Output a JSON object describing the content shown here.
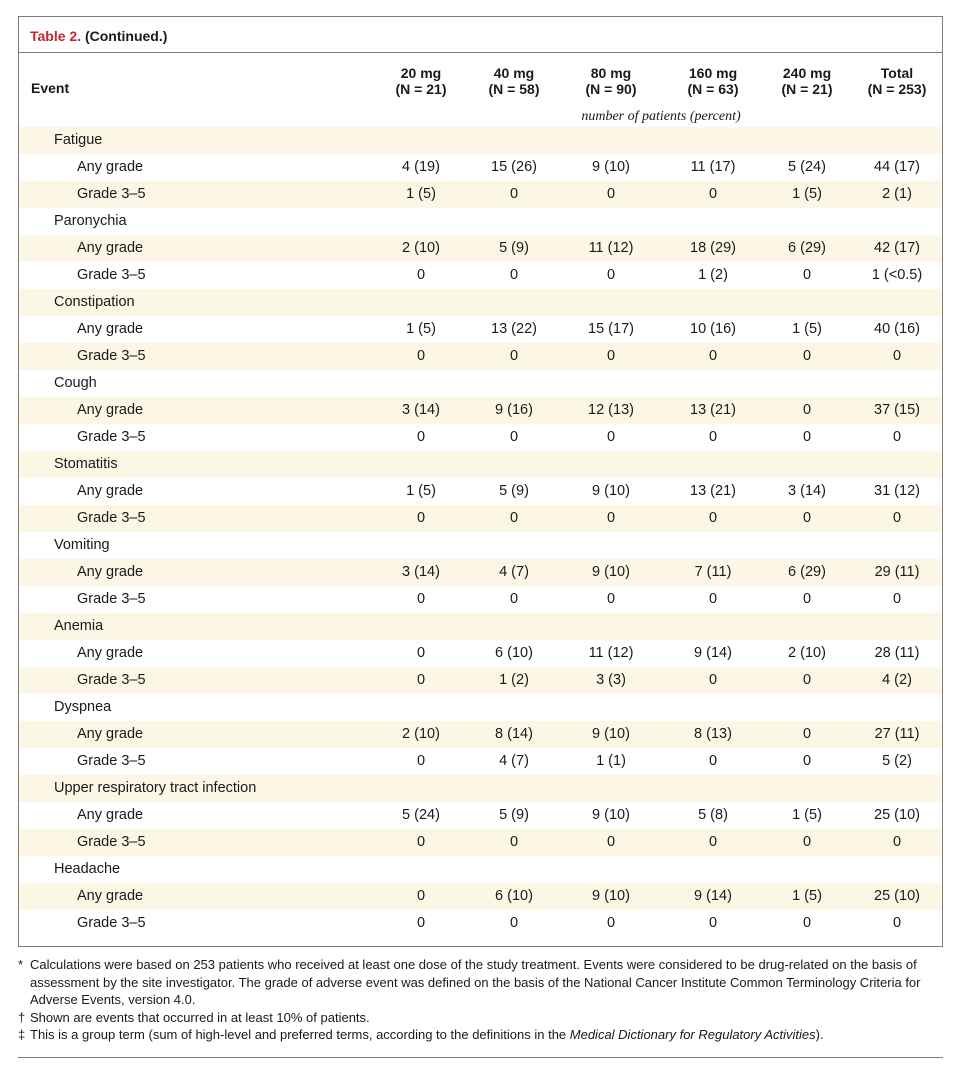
{
  "caption": {
    "label": "Table 2.",
    "continued": "(Continued.)"
  },
  "header": {
    "event": "Event",
    "columns": [
      {
        "dose": "20 mg",
        "n": "(N = 21)"
      },
      {
        "dose": "40 mg",
        "n": "(N = 58)"
      },
      {
        "dose": "80 mg",
        "n": "(N = 90)"
      },
      {
        "dose": "160 mg",
        "n": "(N = 63)"
      },
      {
        "dose": "240 mg",
        "n": "(N = 21)"
      },
      {
        "dose": "Total",
        "n": "(N = 253)"
      }
    ],
    "units": "number of patients (percent)"
  },
  "rows": [
    {
      "kind": "cat",
      "label": "Fatigue"
    },
    {
      "kind": "sub",
      "label": "Any grade",
      "values": [
        "4 (19)",
        "15 (26)",
        "9 (10)",
        "11 (17)",
        "5 (24)",
        "44 (17)"
      ]
    },
    {
      "kind": "sub",
      "label": "Grade 3–5",
      "values": [
        "1 (5)",
        "0",
        "0",
        "0",
        "1 (5)",
        "2 (1)"
      ]
    },
    {
      "kind": "cat",
      "label": "Paronychia"
    },
    {
      "kind": "sub",
      "label": "Any grade",
      "values": [
        "2 (10)",
        "5 (9)",
        "11 (12)",
        "18 (29)",
        "6 (29)",
        "42 (17)"
      ]
    },
    {
      "kind": "sub",
      "label": "Grade 3–5",
      "values": [
        "0",
        "0",
        "0",
        "1 (2)",
        "0",
        "1 (<0.5)"
      ]
    },
    {
      "kind": "cat",
      "label": "Constipation"
    },
    {
      "kind": "sub",
      "label": "Any grade",
      "values": [
        "1 (5)",
        "13 (22)",
        "15 (17)",
        "10 (16)",
        "1 (5)",
        "40 (16)"
      ]
    },
    {
      "kind": "sub",
      "label": "Grade 3–5",
      "values": [
        "0",
        "0",
        "0",
        "0",
        "0",
        "0"
      ]
    },
    {
      "kind": "cat",
      "label": "Cough"
    },
    {
      "kind": "sub",
      "label": "Any grade",
      "values": [
        "3 (14)",
        "9 (16)",
        "12 (13)",
        "13 (21)",
        "0",
        "37 (15)"
      ]
    },
    {
      "kind": "sub",
      "label": "Grade 3–5",
      "values": [
        "0",
        "0",
        "0",
        "0",
        "0",
        "0"
      ]
    },
    {
      "kind": "cat",
      "label": "Stomatitis"
    },
    {
      "kind": "sub",
      "label": "Any grade",
      "values": [
        "1 (5)",
        "5 (9)",
        "9 (10)",
        "13 (21)",
        "3 (14)",
        "31 (12)"
      ]
    },
    {
      "kind": "sub",
      "label": "Grade 3–5",
      "values": [
        "0",
        "0",
        "0",
        "0",
        "0",
        "0"
      ]
    },
    {
      "kind": "cat",
      "label": "Vomiting"
    },
    {
      "kind": "sub",
      "label": "Any grade",
      "values": [
        "3 (14)",
        "4 (7)",
        "9 (10)",
        "7 (11)",
        "6 (29)",
        "29 (11)"
      ]
    },
    {
      "kind": "sub",
      "label": "Grade 3–5",
      "values": [
        "0",
        "0",
        "0",
        "0",
        "0",
        "0"
      ]
    },
    {
      "kind": "cat",
      "label": "Anemia"
    },
    {
      "kind": "sub",
      "label": "Any grade",
      "values": [
        "0",
        "6 (10)",
        "11 (12)",
        "9 (14)",
        "2 (10)",
        "28 (11)"
      ]
    },
    {
      "kind": "sub",
      "label": "Grade 3–5",
      "values": [
        "0",
        "1 (2)",
        "3 (3)",
        "0",
        "0",
        "4 (2)"
      ]
    },
    {
      "kind": "cat",
      "label": "Dyspnea"
    },
    {
      "kind": "sub",
      "label": "Any grade",
      "values": [
        "2 (10)",
        "8 (14)",
        "9 (10)",
        "8 (13)",
        "0",
        "27 (11)"
      ]
    },
    {
      "kind": "sub",
      "label": "Grade 3–5",
      "values": [
        "0",
        "4 (7)",
        "1 (1)",
        "0",
        "0",
        "5 (2)"
      ]
    },
    {
      "kind": "cat",
      "label": "Upper respiratory tract infection"
    },
    {
      "kind": "sub",
      "label": "Any grade",
      "values": [
        "5 (24)",
        "5 (9)",
        "9 (10)",
        "5 (8)",
        "1 (5)",
        "25 (10)"
      ]
    },
    {
      "kind": "sub",
      "label": "Grade 3–5",
      "values": [
        "0",
        "0",
        "0",
        "0",
        "0",
        "0"
      ]
    },
    {
      "kind": "cat",
      "label": "Headache"
    },
    {
      "kind": "sub",
      "label": "Any grade",
      "values": [
        "0",
        "6 (10)",
        "9 (10)",
        "9 (14)",
        "1 (5)",
        "25 (10)"
      ]
    },
    {
      "kind": "sub",
      "label": "Grade 3–5",
      "values": [
        "0",
        "0",
        "0",
        "0",
        "0",
        "0"
      ]
    }
  ],
  "footnotes": [
    {
      "mark": "*",
      "text": "Calculations were based on 253 patients who received at least one dose of the study treatment. Events were considered to be drug-related on the basis of assessment by the site investigator. The grade of adverse event was defined on the basis of the National Cancer Institute Common Terminology Criteria for Adverse Events, version 4.0."
    },
    {
      "mark": "†",
      "text": "Shown are events that occurred in at least 10% of patients."
    },
    {
      "mark": "‡",
      "text_before": "This is a group term (sum of high-level and preferred terms, according to the definitions in the ",
      "text_italic": "Medical Dictionary for Regulatory Activities",
      "text_after": ")."
    }
  ]
}
